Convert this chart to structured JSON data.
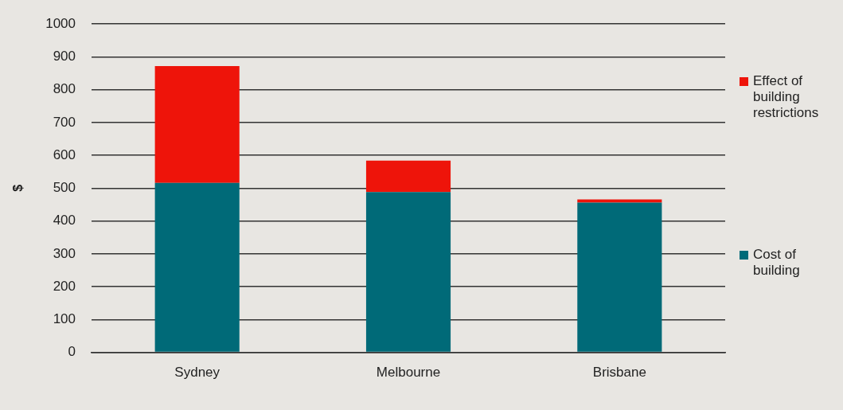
{
  "chart_data": {
    "type": "bar",
    "stacked": true,
    "ylabel": "$",
    "categories": [
      "Sydney",
      "Melbourne",
      "Brisbane"
    ],
    "series": [
      {
        "name": "Cost of building",
        "color": "#006a78",
        "values": [
          516,
          488,
          456
        ]
      },
      {
        "name": "Effect of building restrictions",
        "color": "#ee140a",
        "values": [
          356,
          96,
          10
        ]
      }
    ],
    "ylim": [
      0,
      1000
    ],
    "yticks": [
      0,
      100,
      200,
      300,
      400,
      500,
      600,
      700,
      800,
      900,
      1000
    ],
    "grid": "y",
    "legend": "right"
  }
}
